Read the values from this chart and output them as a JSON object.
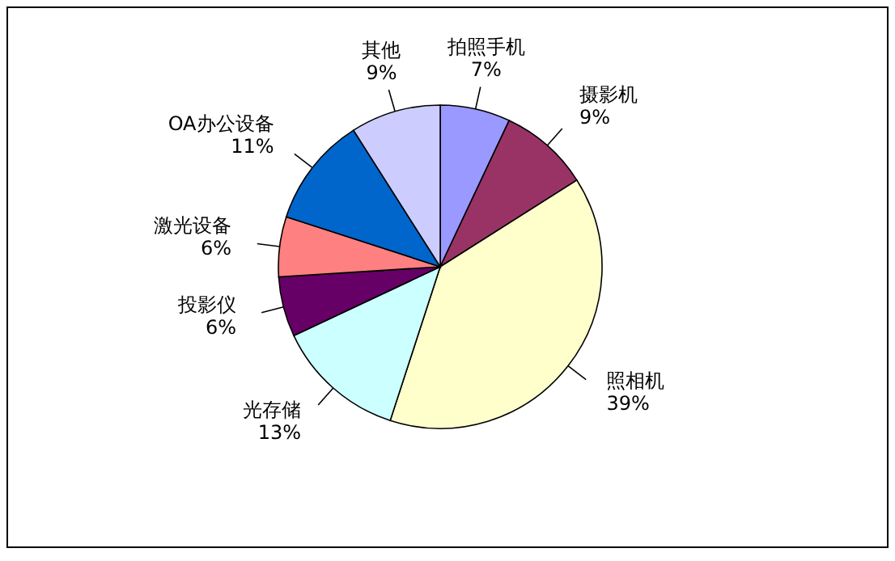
{
  "chart_data": {
    "type": "pie",
    "categories": [
      "拍照手机",
      "摄影机",
      "照相机",
      "光存储",
      "投影仪",
      "激光设备",
      "OA办公设备",
      "其他"
    ],
    "values": [
      7,
      9,
      39,
      13,
      6,
      6,
      11,
      9
    ],
    "colors": [
      "#9999ff",
      "#993366",
      "#ffffcc",
      "#ccffff",
      "#660066",
      "#ff8080",
      "#0066cc",
      "#ccccff"
    ],
    "value_labels": [
      "7%",
      "9%",
      "39%",
      "13%",
      "6%",
      "6%",
      "11%",
      "9%"
    ]
  }
}
